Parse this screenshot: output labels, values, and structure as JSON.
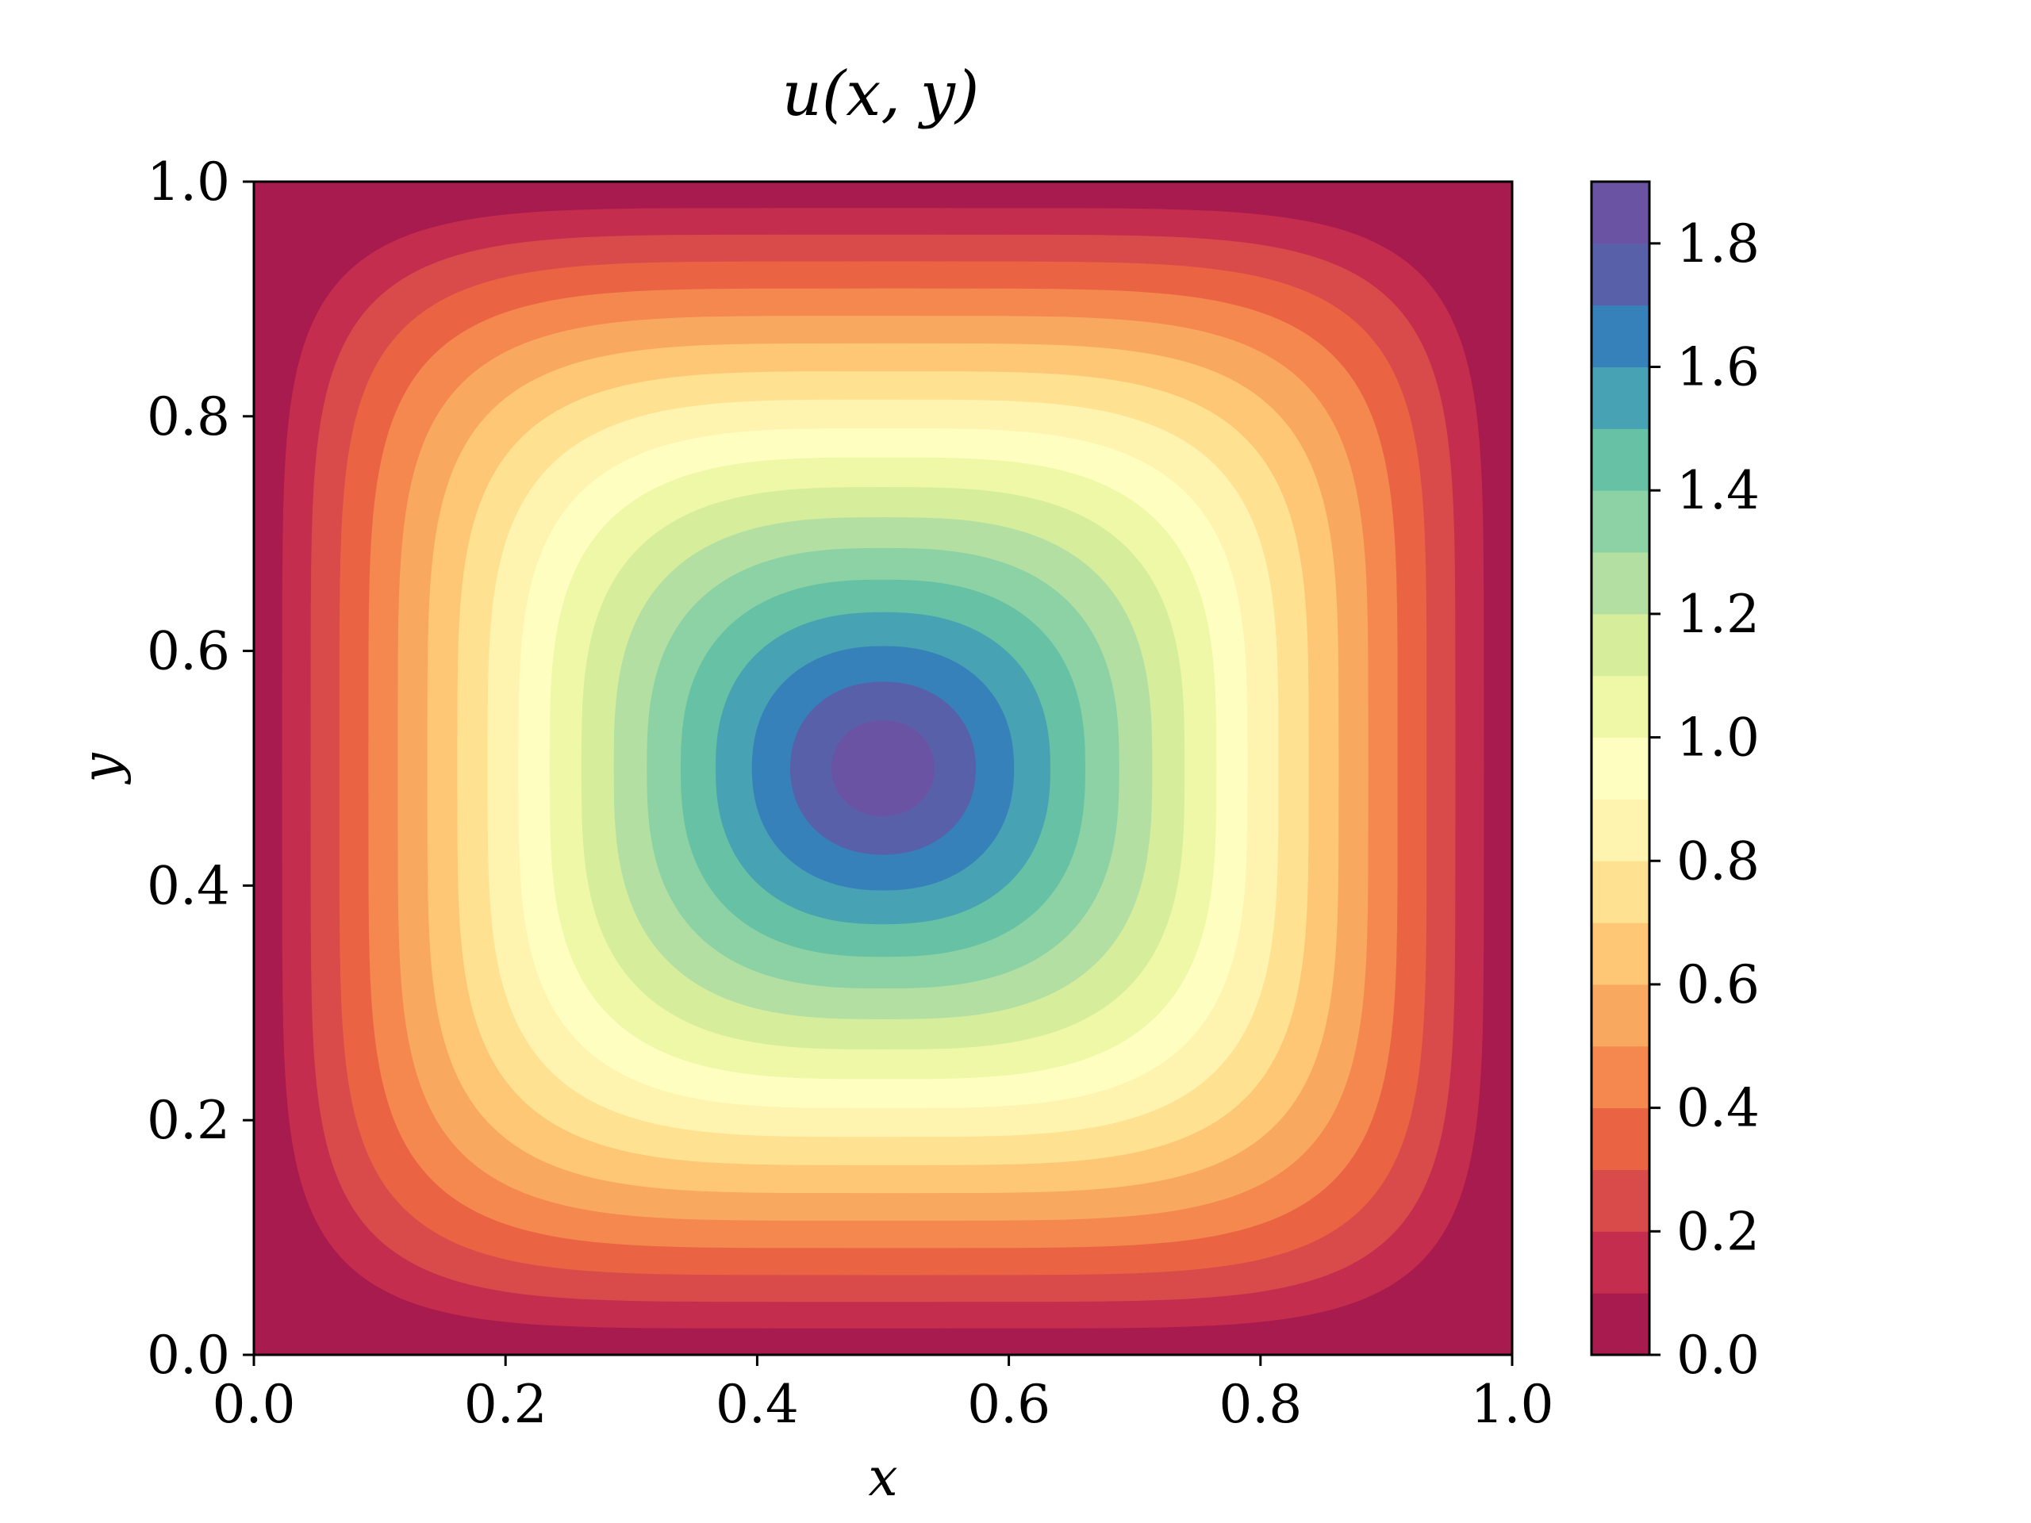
{
  "chart_data": {
    "type": "heatmap",
    "subtype": "filled-contour",
    "title": "u(x, y)",
    "xlabel": "x",
    "ylabel": "y",
    "xlim": [
      0.0,
      1.0
    ],
    "ylim": [
      0.0,
      1.0
    ],
    "x_ticks": [
      "0.0",
      "0.2",
      "0.4",
      "0.6",
      "0.8",
      "1.0"
    ],
    "y_ticks": [
      "0.0",
      "0.2",
      "0.4",
      "0.6",
      "0.8",
      "1.0"
    ],
    "colorbar": {
      "range": [
        0.0,
        1.9
      ],
      "ticks": [
        "0.0",
        "0.2",
        "0.4",
        "0.6",
        "0.8",
        "1.0",
        "1.2",
        "1.4",
        "1.6",
        "1.8"
      ],
      "levels": [
        0.0,
        0.1,
        0.2,
        0.3,
        0.4,
        0.5,
        0.6,
        0.7,
        0.8,
        0.9,
        1.0,
        1.1,
        1.2,
        1.3,
        1.4,
        1.5,
        1.6,
        1.7,
        1.8,
        1.9
      ],
      "colors": [
        "#a81b4e",
        "#c52d4e",
        "#d94b4a",
        "#ea6444",
        "#f4884f",
        "#f9a860",
        "#fdc775",
        "#fee292",
        "#fef4b0",
        "#fefec0",
        "#eef8a6",
        "#d6ee9b",
        "#b3e0a2",
        "#8dd2a4",
        "#66c1a5",
        "#47a2b3",
        "#3781ba",
        "#5960aa",
        "#6b53a3"
      ]
    },
    "field": {
      "peak_value": 1.9,
      "peak_location": [
        0.5,
        0.5
      ],
      "boundary_value": 0.0,
      "shape": "squircle"
    },
    "grid": false
  }
}
